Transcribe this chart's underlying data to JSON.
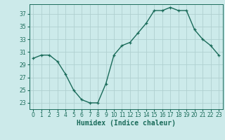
{
  "x": [
    0,
    1,
    2,
    3,
    4,
    5,
    6,
    7,
    8,
    9,
    10,
    11,
    12,
    13,
    14,
    15,
    16,
    17,
    18,
    19,
    20,
    21,
    22,
    23
  ],
  "y": [
    30,
    30.5,
    30.5,
    29.5,
    27.5,
    25,
    23.5,
    23,
    23,
    26,
    30.5,
    32,
    32.5,
    34,
    35.5,
    37.5,
    37.5,
    38,
    37.5,
    37.5,
    34.5,
    33,
    32,
    30.5
  ],
  "line_color": "#1a6b5a",
  "marker": "+",
  "marker_size": 3.5,
  "bg_color": "#cceaea",
  "grid_color": "#b0d0d0",
  "xlabel": "Humidex (Indice chaleur)",
  "xlim": [
    -0.5,
    23.5
  ],
  "ylim": [
    22,
    38.5
  ],
  "yticks": [
    23,
    25,
    27,
    29,
    31,
    33,
    35,
    37
  ],
  "xticks": [
    0,
    1,
    2,
    3,
    4,
    5,
    6,
    7,
    8,
    9,
    10,
    11,
    12,
    13,
    14,
    15,
    16,
    17,
    18,
    19,
    20,
    21,
    22,
    23
  ],
  "tick_fontsize": 5.5,
  "xlabel_fontsize": 7,
  "linewidth": 1.0
}
